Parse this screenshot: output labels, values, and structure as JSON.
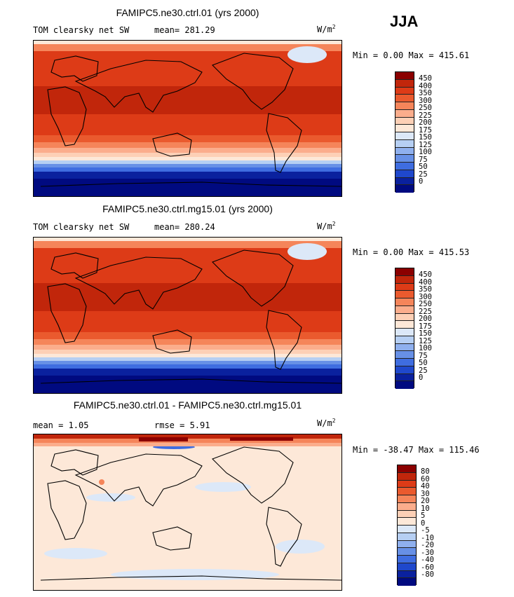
{
  "season": "JJA",
  "panels": [
    {
      "title": "FAMIPC5.ne30.ctrl.01 (yrs 2000)",
      "left_label": "TOM clearsky net SW",
      "mid_label": "mean= 281.29",
      "units": "W/m",
      "units_exp": "2",
      "minmax": "Min =   0.00 Max = 415.61"
    },
    {
      "title": "FAMIPC5.ne30.ctrl.mg15.01 (yrs 2000)",
      "left_label": "TOM clearsky net SW",
      "mid_label": "mean= 280.24",
      "units": "W/m",
      "units_exp": "2",
      "minmax": "Min =   0.00 Max = 415.53"
    },
    {
      "title": "FAMIPC5.ne30.ctrl.01 - FAMIPC5.ne30.ctrl.mg15.01",
      "left_label": "mean =   1.05",
      "mid_label": "rmse =   5.91",
      "units": "W/m",
      "units_exp": "2",
      "minmax": "Min = -38.47 Max = 115.46"
    }
  ],
  "colorbars": {
    "abs_levels": [
      "450",
      "400",
      "350",
      "300",
      "250",
      "225",
      "200",
      "175",
      "150",
      "125",
      "100",
      "75",
      "50",
      "25",
      "0"
    ],
    "abs_colors": [
      "#8b0000",
      "#c1260b",
      "#dd3b17",
      "#ea5a2e",
      "#f5855a",
      "#fbad8c",
      "#fdd0b6",
      "#fde8d8",
      "#dce8f8",
      "#b6cff3",
      "#8fb0ee",
      "#6790e6",
      "#3f6de0",
      "#1f48cc",
      "#0a219e",
      "#000a80"
    ],
    "diff_levels": [
      "80",
      "60",
      "40",
      "30",
      "20",
      "10",
      "5",
      "0",
      "-5",
      "-10",
      "-20",
      "-30",
      "-40",
      "-60",
      "-80"
    ],
    "diff_colors": [
      "#8b0000",
      "#c1260b",
      "#dd3b17",
      "#ea5a2e",
      "#f5855a",
      "#fbad8c",
      "#fdd0b6",
      "#fde8d8",
      "#dce8f8",
      "#b6cff3",
      "#8fb0ee",
      "#6790e6",
      "#3f6de0",
      "#1f48cc",
      "#0a219e",
      "#000a80"
    ]
  }
}
